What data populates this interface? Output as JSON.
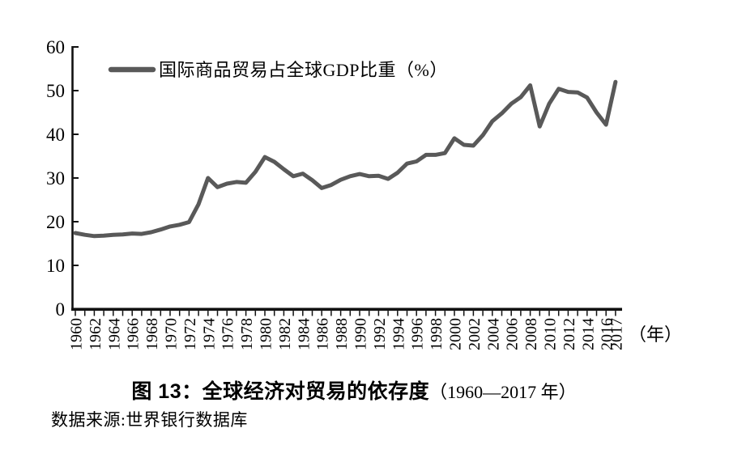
{
  "figure": {
    "title_main": "图 13：全球经济对贸易的依存度",
    "title_range": "（1960—2017 年）",
    "source": "数据来源:世界银行数据库",
    "x_unit_label": "（年）"
  },
  "chart_data": {
    "type": "line",
    "title": "图 13：全球经济对贸易的依存度（1960—2017 年）",
    "legend": "国际商品贸易占全球GDP比重（%）",
    "legend_position": "top-inside-left",
    "grid": false,
    "line_color": "#595959",
    "axis_color": "#111111",
    "ylim": [
      0,
      60
    ],
    "yticks": [
      0,
      10,
      20,
      30,
      40,
      50,
      60
    ],
    "x_axis_unit": "（年）",
    "xlabel": "（年）",
    "ylabel": "",
    "x": [
      1960,
      1961,
      1962,
      1963,
      1964,
      1965,
      1966,
      1967,
      1968,
      1969,
      1970,
      1971,
      1972,
      1973,
      1974,
      1975,
      1976,
      1977,
      1978,
      1979,
      1980,
      1981,
      1982,
      1983,
      1984,
      1985,
      1986,
      1987,
      1988,
      1989,
      1990,
      1991,
      1992,
      1993,
      1994,
      1995,
      1996,
      1997,
      1998,
      1999,
      2000,
      2001,
      2002,
      2003,
      2004,
      2005,
      2006,
      2007,
      2008,
      2009,
      2010,
      2011,
      2012,
      2013,
      2014,
      2015,
      2016,
      2017
    ],
    "series": [
      {
        "name": "国际商品贸易占全球GDP比重（%）",
        "values": [
          17.4,
          17.0,
          16.7,
          16.8,
          17.0,
          17.1,
          17.3,
          17.2,
          17.6,
          18.2,
          18.9,
          19.3,
          19.9,
          24.0,
          30.0,
          27.9,
          28.7,
          29.1,
          28.9,
          31.4,
          34.8,
          33.7,
          32.0,
          30.4,
          31.0,
          29.5,
          27.7,
          28.4,
          29.6,
          30.4,
          30.9,
          30.4,
          30.5,
          29.8,
          31.2,
          33.3,
          33.8,
          35.3,
          35.3,
          35.7,
          39.1,
          37.6,
          37.4,
          39.8,
          43.0,
          44.8,
          47.0,
          48.5,
          51.2,
          41.8,
          47.0,
          50.4,
          49.7,
          49.6,
          48.4,
          45.0,
          42.2,
          52.0
        ]
      }
    ],
    "xtick_label_years": [
      1960,
      1962,
      1964,
      1966,
      1968,
      1970,
      1972,
      1974,
      1976,
      1978,
      1980,
      1982,
      1984,
      1986,
      1988,
      1990,
      1992,
      1994,
      1996,
      1998,
      2000,
      2002,
      2004,
      2006,
      2008,
      2010,
      2012,
      2014,
      2016,
      2017
    ]
  }
}
